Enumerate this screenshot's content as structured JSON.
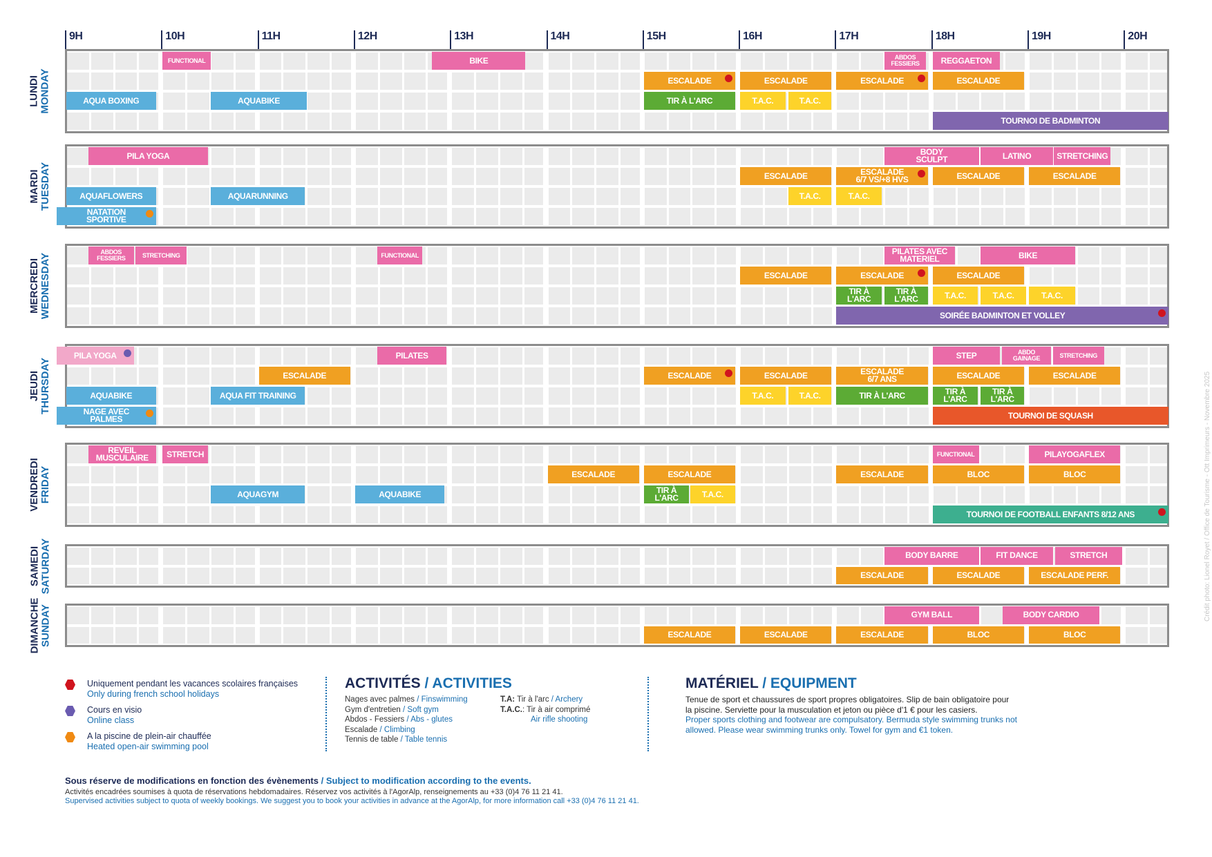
{
  "hours": [
    "9H",
    "10H",
    "11H",
    "12H",
    "13H",
    "14H",
    "15H",
    "16H",
    "17H",
    "18H",
    "19H",
    "20H"
  ],
  "colors": {
    "pink": "#ea6ba8",
    "lightpink": "#f2a8c9",
    "orange": "#f0a022",
    "blue": "#5aafdb",
    "green": "#5cab35",
    "yellow": "#fdd32a",
    "purple": "#8066ae",
    "red_orange": "#e8572a",
    "teal": "#3daf8f",
    "dot_red": "#d0141e",
    "dot_purple": "#6a5bb0",
    "dot_orange": "#f08a12"
  },
  "days": [
    {
      "fr": "LUNDI",
      "en": "MONDAY",
      "rows": 4,
      "events": [
        {
          "row": 0,
          "start": 10,
          "end": 10.5,
          "label": "FUNCTIONAL",
          "color": "pink",
          "small": true
        },
        {
          "row": 0,
          "start": 12.8,
          "end": 13.77,
          "label": "BIKE",
          "color": "pink"
        },
        {
          "row": 0,
          "start": 17.5,
          "end": 17.93,
          "label": "ABDOS\nFESSIERS",
          "color": "pink",
          "small": true
        },
        {
          "row": 0,
          "start": 18,
          "end": 18.7,
          "label": "REGGAETON",
          "color": "pink"
        },
        {
          "row": 1,
          "start": 15,
          "end": 15.95,
          "label": "ESCALADE",
          "color": "orange",
          "dot": "dot_red"
        },
        {
          "row": 1,
          "start": 16,
          "end": 16.95,
          "label": "ESCALADE",
          "color": "orange"
        },
        {
          "row": 1,
          "start": 17,
          "end": 17.95,
          "label": "ESCALADE",
          "color": "orange",
          "dot": "dot_red"
        },
        {
          "row": 1,
          "start": 18,
          "end": 18.95,
          "label": "ESCALADE",
          "color": "orange"
        },
        {
          "row": 2,
          "start": 9,
          "end": 9.93,
          "label": "AQUA BOXING",
          "color": "blue"
        },
        {
          "row": 2,
          "start": 10.5,
          "end": 11.5,
          "label": "AQUABIKE",
          "color": "blue"
        },
        {
          "row": 2,
          "start": 15,
          "end": 15.95,
          "label": "TIR À L'ARC",
          "color": "green"
        },
        {
          "row": 2,
          "start": 16,
          "end": 16.47,
          "label": "T.A.C.",
          "color": "yellow"
        },
        {
          "row": 2,
          "start": 16.5,
          "end": 16.95,
          "label": "T.A.C.",
          "color": "yellow"
        },
        {
          "row": 3,
          "start": 18,
          "end": 20.5,
          "label": "TOURNOI DE BADMINTON",
          "color": "purple"
        }
      ]
    },
    {
      "fr": "MARDI",
      "en": "TUESDAY",
      "rows": 4,
      "events": [
        {
          "row": 0,
          "start": 9.23,
          "end": 10.47,
          "label": "PILA YOGA",
          "color": "pink"
        },
        {
          "row": 0,
          "start": 17.5,
          "end": 18.48,
          "label": "BODY\nSCULPT",
          "color": "pink"
        },
        {
          "row": 0,
          "start": 18.5,
          "end": 19.25,
          "label": "LATINO",
          "color": "pink"
        },
        {
          "row": 0,
          "start": 19.26,
          "end": 19.85,
          "label": "STRETCHING",
          "color": "pink"
        },
        {
          "row": 1,
          "start": 16,
          "end": 16.95,
          "label": "ESCALADE",
          "color": "orange"
        },
        {
          "row": 1,
          "start": 17,
          "end": 17.95,
          "label": "ESCALADE\n6/7 VS/+8 HVS",
          "color": "orange",
          "dot": "dot_red"
        },
        {
          "row": 1,
          "start": 18,
          "end": 18.95,
          "label": "ESCALADE",
          "color": "orange"
        },
        {
          "row": 1,
          "start": 19,
          "end": 19.95,
          "label": "ESCALADE",
          "color": "orange"
        },
        {
          "row": 2,
          "start": 9,
          "end": 9.93,
          "label": "AQUAFLOWERS",
          "color": "blue"
        },
        {
          "row": 2,
          "start": 10.5,
          "end": 11.48,
          "label": "AQUARUNNING",
          "color": "blue"
        },
        {
          "row": 2,
          "start": 16.5,
          "end": 16.95,
          "label": "T.A.C.",
          "color": "yellow"
        },
        {
          "row": 2,
          "start": 17,
          "end": 17.47,
          "label": "T.A.C.",
          "color": "yellow"
        },
        {
          "row": 3,
          "start": 8.9,
          "end": 9.93,
          "label": "NATATION\nSPORTIVE",
          "color": "blue",
          "dot": "dot_orange"
        }
      ]
    },
    {
      "fr": "MERCREDI",
      "en": "WEDNESDAY",
      "rows": 4,
      "events": [
        {
          "row": 0,
          "start": 9.23,
          "end": 9.7,
          "label": "ABDOS\nFESSIERS",
          "color": "pink",
          "small": true
        },
        {
          "row": 0,
          "start": 9.72,
          "end": 10.25,
          "label": "STRETCHING",
          "color": "pink",
          "small": true
        },
        {
          "row": 0,
          "start": 12.23,
          "end": 12.7,
          "label": "FUNCTIONAL",
          "color": "pink",
          "small": true
        },
        {
          "row": 0,
          "start": 17.5,
          "end": 18.23,
          "label": "PILATES AVEC\nMATERIEL",
          "color": "pink"
        },
        {
          "row": 0,
          "start": 18.5,
          "end": 19.48,
          "label": "BIKE",
          "color": "pink"
        },
        {
          "row": 1,
          "start": 16,
          "end": 16.95,
          "label": "ESCALADE",
          "color": "orange"
        },
        {
          "row": 1,
          "start": 17,
          "end": 17.95,
          "label": "ESCALADE",
          "color": "orange",
          "dot": "dot_red"
        },
        {
          "row": 1,
          "start": 18,
          "end": 18.95,
          "label": "ESCALADE",
          "color": "orange"
        },
        {
          "row": 2,
          "start": 17,
          "end": 17.47,
          "label": "TIR À\nL'ARC",
          "color": "green"
        },
        {
          "row": 2,
          "start": 17.5,
          "end": 17.95,
          "label": "TIR À\nL'ARC",
          "color": "green"
        },
        {
          "row": 2,
          "start": 18,
          "end": 18.47,
          "label": "T.A.C.",
          "color": "yellow"
        },
        {
          "row": 2,
          "start": 18.5,
          "end": 18.97,
          "label": "T.A.C.",
          "color": "yellow"
        },
        {
          "row": 2,
          "start": 19,
          "end": 19.48,
          "label": "T.A.C.",
          "color": "yellow"
        },
        {
          "row": 3,
          "start": 17,
          "end": 20.5,
          "label": "SOIRÉE BADMINTON ET VOLLEY",
          "color": "purple",
          "dot": "dot_red"
        }
      ]
    },
    {
      "fr": "JEUDI",
      "en": "THURSDAY",
      "rows": 4,
      "events": [
        {
          "row": 0,
          "start": 8.9,
          "end": 9.7,
          "label": "PILA YOGA",
          "color": "lightpink",
          "dot": "dot_purple"
        },
        {
          "row": 0,
          "start": 12.23,
          "end": 12.95,
          "label": "PILATES",
          "color": "pink"
        },
        {
          "row": 0,
          "start": 18,
          "end": 18.7,
          "label": "STEP",
          "color": "pink"
        },
        {
          "row": 0,
          "start": 18.72,
          "end": 19.23,
          "label": "ABDO\nGAINAGE",
          "color": "pink",
          "small": true
        },
        {
          "row": 0,
          "start": 19.25,
          "end": 19.78,
          "label": "STRETCHING",
          "color": "pink",
          "small": true
        },
        {
          "row": 1,
          "start": 11,
          "end": 11.95,
          "label": "ESCALADE",
          "color": "orange"
        },
        {
          "row": 1,
          "start": 15,
          "end": 15.95,
          "label": "ESCALADE",
          "color": "orange",
          "dot": "dot_red"
        },
        {
          "row": 1,
          "start": 16,
          "end": 16.95,
          "label": "ESCALADE",
          "color": "orange"
        },
        {
          "row": 1,
          "start": 17,
          "end": 17.95,
          "label": "ESCALADE\n6/7 ANS",
          "color": "orange"
        },
        {
          "row": 1,
          "start": 18,
          "end": 18.95,
          "label": "ESCALADE",
          "color": "orange"
        },
        {
          "row": 1,
          "start": 19,
          "end": 19.95,
          "label": "ESCALADE",
          "color": "orange"
        },
        {
          "row": 2,
          "start": 9,
          "end": 9.93,
          "label": "AQUABIKE",
          "color": "blue"
        },
        {
          "row": 2,
          "start": 10.5,
          "end": 11.48,
          "label": "AQUA FIT TRAINING",
          "color": "blue"
        },
        {
          "row": 2,
          "start": 16,
          "end": 16.47,
          "label": "T.A.C.",
          "color": "yellow"
        },
        {
          "row": 2,
          "start": 16.5,
          "end": 16.95,
          "label": "T.A.C.",
          "color": "yellow"
        },
        {
          "row": 2,
          "start": 17,
          "end": 17.95,
          "label": "TIR À L'ARC",
          "color": "green"
        },
        {
          "row": 2,
          "start": 18,
          "end": 18.47,
          "label": "TIR À\nL'ARC",
          "color": "green"
        },
        {
          "row": 2,
          "start": 18.5,
          "end": 18.95,
          "label": "TIR À\nL'ARC",
          "color": "green"
        },
        {
          "row": 3,
          "start": 8.9,
          "end": 9.93,
          "label": "NAGE AVEC\nPALMES",
          "color": "blue",
          "dot": "dot_orange"
        },
        {
          "row": 3,
          "start": 18,
          "end": 20.5,
          "label": "TOURNOI DE SQUASH",
          "color": "red_orange"
        }
      ]
    },
    {
      "fr": "VENDREDI",
      "en": "FRIDAY",
      "rows": 4,
      "events": [
        {
          "row": 0,
          "start": 9.23,
          "end": 9.93,
          "label": "REVEIL\nMUSCULAIRE",
          "color": "pink"
        },
        {
          "row": 0,
          "start": 10,
          "end": 10.47,
          "label": "STRETCH",
          "color": "pink"
        },
        {
          "row": 0,
          "start": 18,
          "end": 18.48,
          "label": "FUNCTIONAL",
          "color": "pink",
          "small": true
        },
        {
          "row": 0,
          "start": 19,
          "end": 19.95,
          "label": "PILAYOGAFLEX",
          "color": "pink"
        },
        {
          "row": 1,
          "start": 14,
          "end": 14.95,
          "label": "ESCALADE",
          "color": "orange"
        },
        {
          "row": 1,
          "start": 15,
          "end": 15.95,
          "label": "ESCALADE",
          "color": "orange"
        },
        {
          "row": 1,
          "start": 17,
          "end": 17.95,
          "label": "ESCALADE",
          "color": "orange"
        },
        {
          "row": 1,
          "start": 18,
          "end": 18.95,
          "label": "BLOC",
          "color": "orange"
        },
        {
          "row": 1,
          "start": 19,
          "end": 19.95,
          "label": "BLOC",
          "color": "orange"
        },
        {
          "row": 2,
          "start": 10.5,
          "end": 11.48,
          "label": "AQUAGYM",
          "color": "blue"
        },
        {
          "row": 2,
          "start": 12,
          "end": 12.93,
          "label": "AQUABIKE",
          "color": "blue"
        },
        {
          "row": 2,
          "start": 15,
          "end": 15.47,
          "label": "TIR À\nL'ARC",
          "color": "green"
        },
        {
          "row": 2,
          "start": 15.48,
          "end": 15.95,
          "label": "T.A.C.",
          "color": "yellow"
        },
        {
          "row": 3,
          "start": 18,
          "end": 20.5,
          "label": "TOURNOI DE FOOTBALL ENFANTS 8/12 ANS",
          "color": "teal",
          "dot": "dot_red"
        }
      ]
    },
    {
      "fr": "SAMEDI",
      "en": "SATURDAY",
      "rows": 2,
      "events": [
        {
          "row": 0,
          "start": 17.5,
          "end": 18.48,
          "label": "BODY BARRE",
          "color": "pink"
        },
        {
          "row": 0,
          "start": 18.5,
          "end": 19.25,
          "label": "FIT DANCE",
          "color": "pink"
        },
        {
          "row": 0,
          "start": 19.27,
          "end": 19.97,
          "label": "STRETCH",
          "color": "pink"
        },
        {
          "row": 1,
          "start": 17,
          "end": 17.95,
          "label": "ESCALADE",
          "color": "orange"
        },
        {
          "row": 1,
          "start": 18,
          "end": 18.95,
          "label": "ESCALADE",
          "color": "orange"
        },
        {
          "row": 1,
          "start": 19,
          "end": 19.95,
          "label": "ESCALADE PERF.",
          "color": "orange"
        }
      ]
    },
    {
      "fr": "DIMANCHE",
      "en": "SUNDAY",
      "rows": 2,
      "events": [
        {
          "row": 0,
          "start": 17.5,
          "end": 18.48,
          "label": "GYM BALL",
          "color": "pink"
        },
        {
          "row": 0,
          "start": 18.73,
          "end": 19.73,
          "label": "BODY CARDIO",
          "color": "pink"
        },
        {
          "row": 1,
          "start": 15,
          "end": 15.95,
          "label": "ESCALADE",
          "color": "orange"
        },
        {
          "row": 1,
          "start": 16,
          "end": 16.95,
          "label": "ESCALADE",
          "color": "orange"
        },
        {
          "row": 1,
          "start": 17,
          "end": 17.95,
          "label": "ESCALADE",
          "color": "orange"
        },
        {
          "row": 1,
          "start": 18,
          "end": 18.95,
          "label": "BLOC",
          "color": "orange"
        },
        {
          "row": 1,
          "start": 19,
          "end": 19.95,
          "label": "BLOC",
          "color": "orange"
        }
      ]
    }
  ],
  "legend": [
    {
      "fr": "Uniquement pendant les vacances scolaires françaises",
      "en": "Only during french school holidays",
      "color": "dot_red"
    },
    {
      "fr": "Cours en visio",
      "en": "Online class",
      "color": "dot_purple"
    },
    {
      "fr": "A la piscine de plein-air chauffée",
      "en": "Heated open-air swimming pool",
      "color": "dot_orange"
    }
  ],
  "activities": {
    "title_fr": "ACTIVITÉS",
    "title_en": "/ ACTIVITIES",
    "left": [
      {
        "fr": "Nages avec palmes",
        "en": "/ Finswimming"
      },
      {
        "fr": "Gym d'entretien",
        "en": "/ Soft gym"
      },
      {
        "fr": "Abdos - Fessiers",
        "en": "/ Abs - glutes"
      },
      {
        "fr": "Escalade",
        "en": "/ Climbing"
      },
      {
        "fr": "Tennis de table",
        "en": "/ Table tennis"
      }
    ],
    "right": [
      {
        "abbr": "T.A:",
        "fr": "Tir à l'arc",
        "en": "/ Archery"
      },
      {
        "abbr": "T.A.C.",
        "fr": ": Tir à air comprimé",
        "en": "Air rifle shooting"
      }
    ]
  },
  "equipment": {
    "title_fr": "MATÉRIEL",
    "title_en": "/ EQUIPMENT",
    "fr": "Tenue de sport et chaussures de sport propres obligatoires. Slip de bain obligatoire pour la piscine. Serviette pour la musculation et jeton ou pièce d'1 € pour les casiers.",
    "en": "Proper sports clothing and footwear are compulsatory. Bermuda style swimming trunks not allowed. Please wear swimming trunks only. Towel for gym and €1 token."
  },
  "footer": {
    "notice_fr": "Sous réserve de modifications en fonction des évènements",
    "notice_en": "/ Subject to modification according to the events.",
    "line_fr": "Activités encadrées soumises à quota de réservations hebdomadaires. Réservez vos activités à l'AgorAlp, renseignements au +33 (0)4 76 11 21 41.",
    "line_en": "Supervised activities subject to quota of weekly bookings. We suggest you to book your activities in advance at the AgorAlp, for more information call +33 (0)4 76 11 21 41."
  },
  "credit": "Crédit photo: Lionel Royet / Office de Tourisme - Ott Imprimeurs - Novembre 2025"
}
